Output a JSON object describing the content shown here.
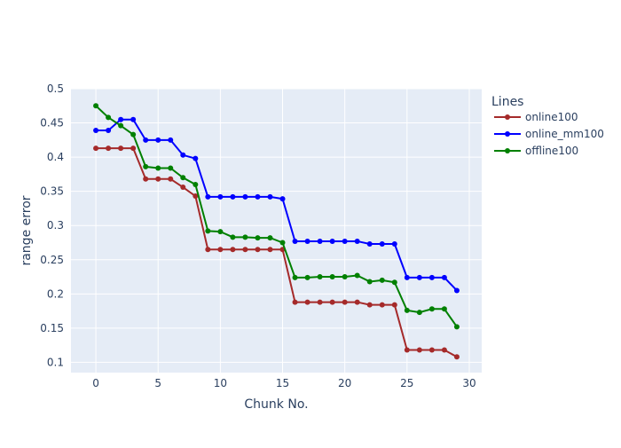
{
  "chart_data": {
    "type": "line",
    "xlabel": "Chunk No.",
    "ylabel": "range error",
    "xlim": [
      -2,
      31
    ],
    "ylim": [
      0.085,
      0.5
    ],
    "x_ticks": [
      0,
      5,
      10,
      15,
      20,
      25,
      30
    ],
    "y_ticks": [
      0.1,
      0.15,
      0.2,
      0.25,
      0.3,
      0.35,
      0.4,
      0.45,
      0.5
    ],
    "grid": true,
    "plot_background": "#e5ecf6",
    "legend": {
      "title": "Lines",
      "placement": "right"
    },
    "x": [
      0,
      1,
      2,
      3,
      4,
      5,
      6,
      7,
      8,
      9,
      10,
      11,
      12,
      13,
      14,
      15,
      16,
      17,
      18,
      19,
      20,
      21,
      22,
      23,
      24,
      25,
      26,
      27,
      28,
      29
    ],
    "series": [
      {
        "name": "online100",
        "color": "#a52a2a",
        "values": [
          0.413,
          0.413,
          0.413,
          0.413,
          0.368,
          0.368,
          0.368,
          0.356,
          0.343,
          0.265,
          0.265,
          0.265,
          0.265,
          0.265,
          0.265,
          0.265,
          0.188,
          0.188,
          0.188,
          0.188,
          0.188,
          0.188,
          0.184,
          0.184,
          0.184,
          0.118,
          0.118,
          0.118,
          0.118,
          0.108
        ]
      },
      {
        "name": "online_mm100",
        "color": "#0000ff",
        "values": [
          0.439,
          0.439,
          0.455,
          0.455,
          0.425,
          0.425,
          0.425,
          0.403,
          0.398,
          0.342,
          0.342,
          0.342,
          0.342,
          0.342,
          0.342,
          0.339,
          0.277,
          0.277,
          0.277,
          0.277,
          0.277,
          0.277,
          0.273,
          0.273,
          0.273,
          0.224,
          0.224,
          0.224,
          0.224,
          0.205
        ]
      },
      {
        "name": "offline100",
        "color": "#008000",
        "values": [
          0.475,
          0.458,
          0.446,
          0.433,
          0.386,
          0.384,
          0.384,
          0.37,
          0.36,
          0.292,
          0.291,
          0.283,
          0.283,
          0.282,
          0.282,
          0.275,
          0.224,
          0.224,
          0.225,
          0.225,
          0.225,
          0.227,
          0.218,
          0.22,
          0.217,
          0.176,
          0.173,
          0.178,
          0.178,
          0.152
        ]
      }
    ]
  }
}
